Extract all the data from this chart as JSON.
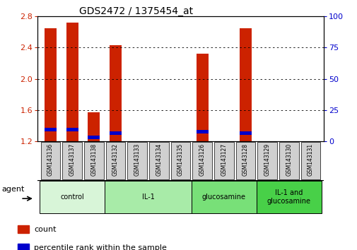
{
  "title": "GDS2472 / 1375454_at",
  "samples": [
    "GSM143136",
    "GSM143137",
    "GSM143138",
    "GSM143132",
    "GSM143133",
    "GSM143134",
    "GSM143135",
    "GSM143126",
    "GSM143127",
    "GSM143128",
    "GSM143129",
    "GSM143130",
    "GSM143131"
  ],
  "count_values": [
    2.65,
    2.72,
    1.57,
    2.43,
    1.2,
    1.2,
    1.2,
    2.32,
    1.2,
    2.65,
    1.2,
    1.2,
    1.2
  ],
  "percentile_values": [
    1.35,
    1.35,
    1.25,
    1.3,
    0,
    0,
    0,
    1.32,
    0,
    1.3,
    0,
    0,
    0
  ],
  "bar_bottom": 1.2,
  "ylim_left": [
    1.2,
    2.8
  ],
  "ylim_right": [
    0,
    100
  ],
  "yticks_left": [
    1.2,
    1.6,
    2.0,
    2.4,
    2.8
  ],
  "yticks_right": [
    0,
    25,
    50,
    75,
    100
  ],
  "groups": [
    {
      "label": "control",
      "start": 0,
      "end": 3,
      "color": "#d8f5d8"
    },
    {
      "label": "IL-1",
      "start": 3,
      "end": 7,
      "color": "#a8eba8"
    },
    {
      "label": "glucosamine",
      "start": 7,
      "end": 10,
      "color": "#78e078"
    },
    {
      "label": "IL-1 and\nglucosamine",
      "start": 10,
      "end": 13,
      "color": "#48d048"
    }
  ],
  "bar_color": "#cc2200",
  "percentile_color": "#0000cc",
  "bar_width": 0.55,
  "tick_color_left": "#cc2200",
  "tick_color_right": "#0000cc",
  "agent_label": "agent",
  "legend_count_label": "count",
  "legend_percentile_label": "percentile rank within the sample",
  "background_color": "#ffffff",
  "xticklabel_bg": "#d0d0d0"
}
